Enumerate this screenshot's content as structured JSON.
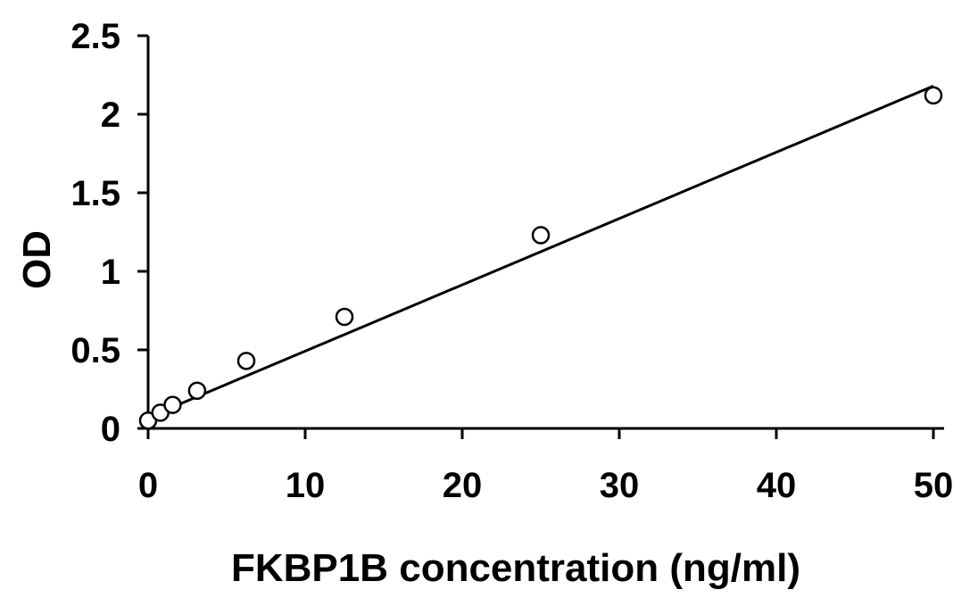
{
  "chart_data": {
    "type": "scatter",
    "title": "",
    "xlabel": "FKBP1B concentration (ng/ml)",
    "ylabel": "OD",
    "xlim": [
      0,
      50
    ],
    "ylim": [
      0,
      2.5
    ],
    "x_ticks": [
      "0",
      "10",
      "20",
      "30",
      "40",
      "50"
    ],
    "y_ticks": [
      "0",
      "0.5",
      "1",
      "1.5",
      "2",
      "2.5"
    ],
    "grid": false,
    "legend": "none",
    "series": [
      {
        "x": [
          0,
          0.78,
          1.56,
          3.12,
          6.25,
          12.5,
          25,
          50
        ],
        "y": [
          0.05,
          0.1,
          0.15,
          0.24,
          0.43,
          0.71,
          1.23,
          2.12
        ]
      }
    ],
    "trendline": {
      "type": "linear",
      "x": [
        0,
        50
      ],
      "y": [
        0.07,
        2.18
      ]
    },
    "colors": {
      "axis": "#000000",
      "marker_fill": "#ffffff",
      "marker_stroke": "#000000",
      "line": "#000000"
    }
  }
}
